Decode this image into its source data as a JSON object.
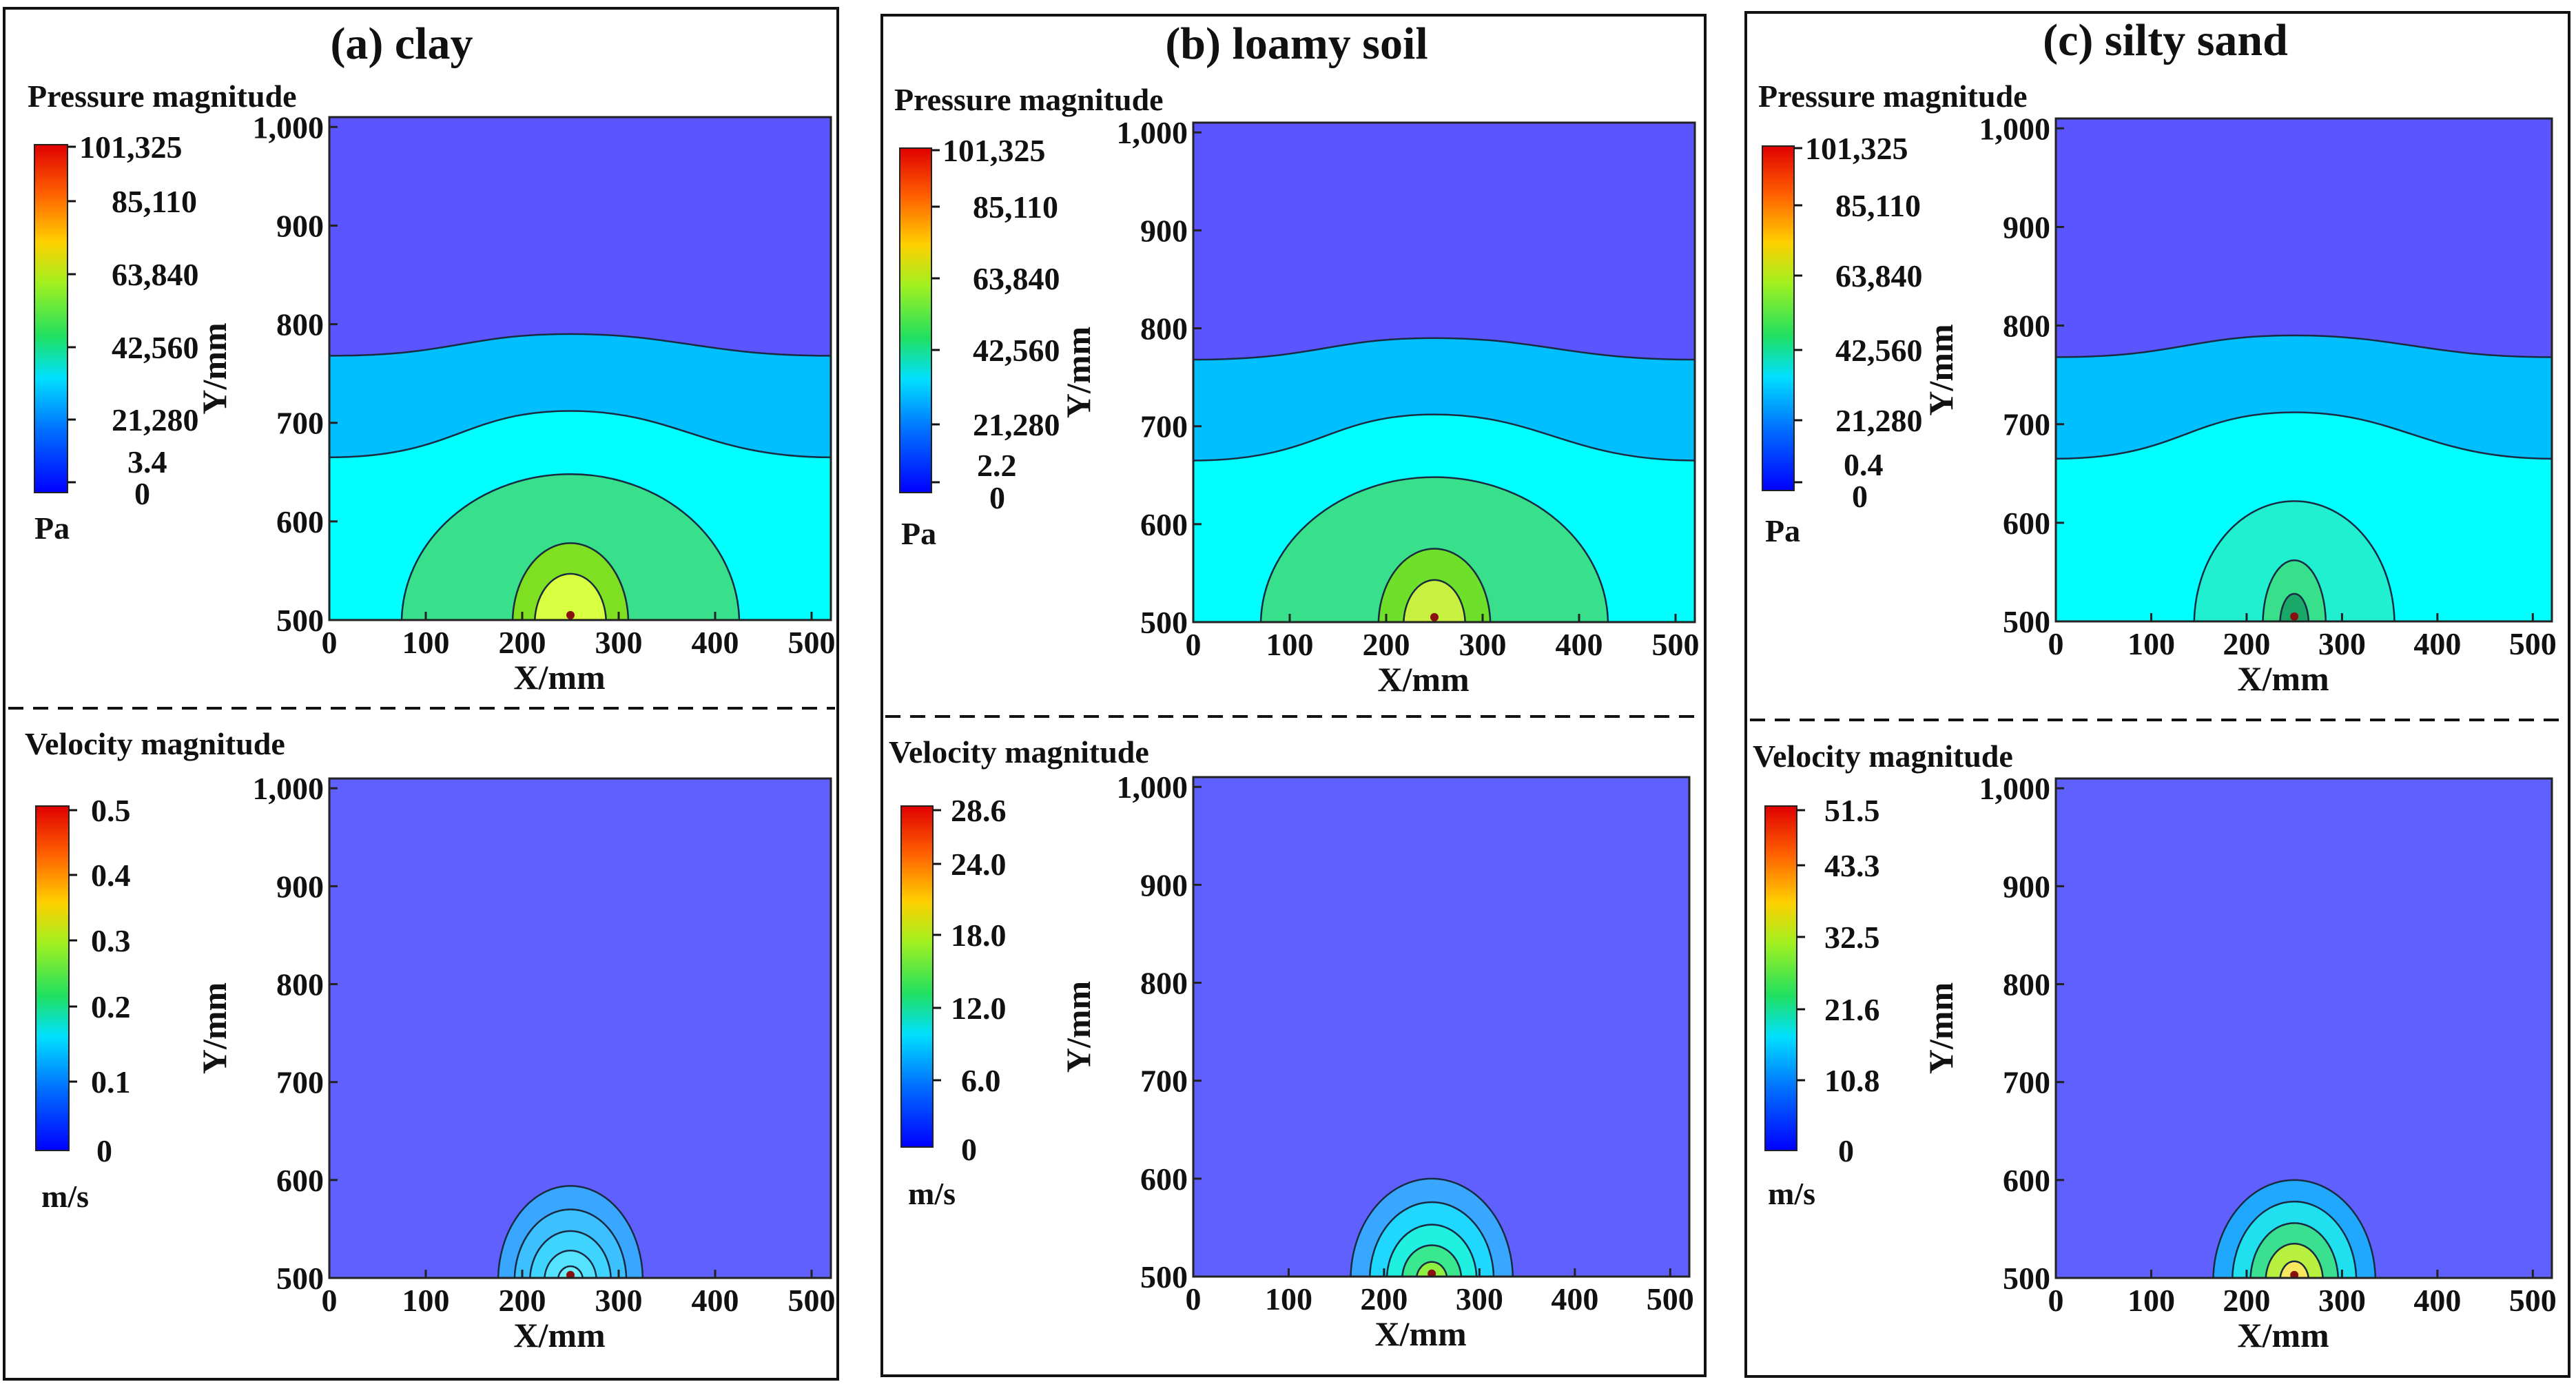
{
  "figure": {
    "panels": [
      {
        "title": "(a) clay",
        "pressure": {
          "heading": "Pressure magnitude",
          "unit": "Pa",
          "colorbar_ticks": [
            "101,325",
            "85,110",
            "63,840",
            "42,560",
            "21,280",
            "3.4",
            "0"
          ],
          "colorbar_tick_values": [
            101325,
            85110,
            63840,
            42560,
            21280,
            3.4,
            0
          ]
        },
        "velocity": {
          "heading": "Velocity magnitude",
          "unit": "m/s",
          "colorbar_ticks": [
            "0.5",
            "0.4",
            "0.3",
            "0.2",
            "0.1",
            "0"
          ],
          "colorbar_tick_values": [
            0.5,
            0.4,
            0.3,
            0.2,
            0.1,
            0
          ]
        }
      },
      {
        "title": "(b) loamy soil",
        "pressure": {
          "heading": "Pressure magnitude",
          "unit": "Pa",
          "colorbar_ticks": [
            "101,325",
            "85,110",
            "63,840",
            "42,560",
            "21,280",
            "2.2",
            "0"
          ],
          "colorbar_tick_values": [
            101325,
            85110,
            63840,
            42560,
            21280,
            2.2,
            0
          ]
        },
        "velocity": {
          "heading": "Velocity magnitude",
          "unit": "m/s",
          "colorbar_ticks": [
            "28.6",
            "24.0",
            "18.0",
            "12.0",
            "6.0",
            "0"
          ],
          "colorbar_tick_values": [
            28.6,
            24.0,
            18.0,
            12.0,
            6.0,
            0
          ]
        }
      },
      {
        "title": "(c) silty sand",
        "pressure": {
          "heading": "Pressure magnitude",
          "unit": "Pa",
          "colorbar_ticks": [
            "101,325",
            "85,110",
            "63,840",
            "42,560",
            "21,280",
            "0.4",
            "0"
          ],
          "colorbar_tick_values": [
            101325,
            85110,
            63840,
            42560,
            21280,
            0.4,
            0
          ]
        },
        "velocity": {
          "heading": "Velocity magnitude",
          "unit": "m/s",
          "colorbar_ticks": [
            "51.5",
            "43.3",
            "32.5",
            "21.6",
            "10.8",
            "0"
          ],
          "colorbar_tick_values": [
            51.5,
            43.3,
            32.5,
            21.6,
            10.8,
            0
          ]
        }
      }
    ]
  },
  "chart_data": [
    {
      "type": "heatmap",
      "title": "(a) clay — Pressure magnitude",
      "xlabel": "X/mm",
      "ylabel": "Y/mm",
      "xlim": [
        0,
        520
      ],
      "ylim": [
        500,
        1010
      ],
      "x_ticks": [
        0,
        100,
        200,
        300,
        400,
        500
      ],
      "y_ticks": [
        500,
        600,
        700,
        800,
        900,
        1000
      ],
      "y_tick_labels": [
        "500",
        "600",
        "700",
        "800",
        "900",
        "1,000"
      ],
      "colorbar_range": [
        0,
        101325
      ],
      "unit": "Pa",
      "source_x": 250,
      "source_y": 505,
      "colors": [
        "#5a55ff",
        "#00bfff",
        "#00ffff",
        "#38e08c",
        "#7ee020",
        "#d8ff40"
      ],
      "regions": [
        {
          "kind": "band",
          "edge_y": 665,
          "edge_crest": 712
        },
        {
          "kind": "band",
          "edge_y": 768,
          "edge_crest": 790
        },
        {
          "kind": "dome",
          "cx": 250,
          "rx": 175,
          "top": 648
        },
        {
          "kind": "dome",
          "cx": 250,
          "rx": 60,
          "top": 578
        },
        {
          "kind": "dome",
          "cx": 250,
          "rx": 37,
          "top": 547
        }
      ]
    },
    {
      "type": "heatmap",
      "title": "(a) clay — Velocity magnitude",
      "xlabel": "X/mm",
      "ylabel": "Y/mm",
      "xlim": [
        0,
        520
      ],
      "ylim": [
        500,
        1010
      ],
      "x_ticks": [
        0,
        100,
        200,
        300,
        400,
        500
      ],
      "y_ticks": [
        500,
        600,
        700,
        800,
        900,
        1000
      ],
      "y_tick_labels": [
        "500",
        "600",
        "700",
        "800",
        "900",
        "1,000"
      ],
      "colorbar_range": [
        0,
        0.5
      ],
      "unit": "m/s",
      "source_x": 250,
      "source_y": 503,
      "colors": [
        "#6060ff",
        "#39a7ff",
        "#3cc0ff",
        "#3ed4ff",
        "#55e2ff",
        "#6ff0ff"
      ],
      "regions": [
        {
          "kind": "dome",
          "cx": 250,
          "rx": 75,
          "top": 594
        },
        {
          "kind": "dome",
          "cx": 250,
          "rx": 58,
          "top": 570
        },
        {
          "kind": "dome",
          "cx": 250,
          "rx": 42,
          "top": 548
        },
        {
          "kind": "dome",
          "cx": 250,
          "rx": 27,
          "top": 528
        },
        {
          "kind": "dome",
          "cx": 250,
          "rx": 13,
          "top": 512
        }
      ]
    },
    {
      "type": "heatmap",
      "title": "(b) loamy soil — Pressure magnitude",
      "xlabel": "X/mm",
      "ylabel": "Y/mm",
      "xlim": [
        0,
        520
      ],
      "ylim": [
        500,
        1010
      ],
      "x_ticks": [
        0,
        100,
        200,
        300,
        400,
        500
      ],
      "y_ticks": [
        500,
        600,
        700,
        800,
        900,
        1000
      ],
      "y_tick_labels": [
        "500",
        "600",
        "700",
        "800",
        "900",
        "1,000"
      ],
      "colorbar_range": [
        0,
        101325
      ],
      "unit": "Pa",
      "source_x": 250,
      "source_y": 505,
      "colors": [
        "#5a55ff",
        "#00bfff",
        "#00ffff",
        "#38e08c",
        "#6ee02a",
        "#c8f040"
      ],
      "regions": [
        {
          "kind": "band",
          "edge_y": 665,
          "edge_crest": 712
        },
        {
          "kind": "band",
          "edge_y": 768,
          "edge_crest": 790
        },
        {
          "kind": "dome",
          "cx": 250,
          "rx": 180,
          "top": 648
        },
        {
          "kind": "dome",
          "cx": 250,
          "rx": 58,
          "top": 575
        },
        {
          "kind": "dome",
          "cx": 250,
          "rx": 32,
          "top": 543
        }
      ]
    },
    {
      "type": "heatmap",
      "title": "(b) loamy soil — Velocity magnitude",
      "xlabel": "X/mm",
      "ylabel": "Y/mm",
      "xlim": [
        0,
        520
      ],
      "ylim": [
        500,
        1010
      ],
      "x_ticks": [
        0,
        100,
        200,
        300,
        400,
        500
      ],
      "y_ticks": [
        500,
        600,
        700,
        800,
        900,
        1000
      ],
      "y_tick_labels": [
        "500",
        "600",
        "700",
        "800",
        "900",
        "1,000"
      ],
      "colorbar_range": [
        0,
        28.6
      ],
      "unit": "m/s",
      "source_x": 250,
      "source_y": 503,
      "colors": [
        "#6060ff",
        "#39a7ff",
        "#20d8ff",
        "#20f0e0",
        "#3ae890",
        "#8ef040"
      ],
      "regions": [
        {
          "kind": "dome",
          "cx": 250,
          "rx": 85,
          "top": 600
        },
        {
          "kind": "dome",
          "cx": 250,
          "rx": 65,
          "top": 576
        },
        {
          "kind": "dome",
          "cx": 250,
          "rx": 47,
          "top": 553
        },
        {
          "kind": "dome",
          "cx": 250,
          "rx": 31,
          "top": 532
        },
        {
          "kind": "dome",
          "cx": 250,
          "rx": 16,
          "top": 515
        }
      ]
    },
    {
      "type": "heatmap",
      "title": "(c) silty sand — Pressure magnitude",
      "xlabel": "X/mm",
      "ylabel": "Y/mm",
      "xlim": [
        0,
        520
      ],
      "ylim": [
        500,
        1010
      ],
      "x_ticks": [
        0,
        100,
        200,
        300,
        400,
        500
      ],
      "y_ticks": [
        500,
        600,
        700,
        800,
        900,
        1000
      ],
      "y_tick_labels": [
        "500",
        "600",
        "700",
        "800",
        "900",
        "1,000"
      ],
      "colorbar_range": [
        0,
        101325
      ],
      "unit": "Pa",
      "source_x": 250,
      "source_y": 505,
      "colors": [
        "#5a55ff",
        "#00bfff",
        "#00ffff",
        "#20f0d0",
        "#38e08c",
        "#1aa868"
      ],
      "regions": [
        {
          "kind": "band",
          "edge_y": 665,
          "edge_crest": 712
        },
        {
          "kind": "band",
          "edge_y": 768,
          "edge_crest": 790
        },
        {
          "kind": "dome",
          "cx": 250,
          "rx": 105,
          "top": 622
        },
        {
          "kind": "dome",
          "cx": 250,
          "rx": 33,
          "top": 562
        },
        {
          "kind": "dome",
          "cx": 250,
          "rx": 15,
          "top": 528
        }
      ]
    },
    {
      "type": "heatmap",
      "title": "(c) silty sand — Velocity magnitude",
      "xlabel": "X/mm",
      "ylabel": "Y/mm",
      "xlim": [
        0,
        520
      ],
      "ylim": [
        500,
        1010
      ],
      "x_ticks": [
        0,
        100,
        200,
        300,
        400,
        500
      ],
      "y_ticks": [
        500,
        600,
        700,
        800,
        900,
        1000
      ],
      "y_tick_labels": [
        "500",
        "600",
        "700",
        "800",
        "900",
        "1,000"
      ],
      "colorbar_range": [
        0,
        51.5
      ],
      "unit": "m/s",
      "source_x": 250,
      "source_y": 503,
      "colors": [
        "#6060ff",
        "#20a8ff",
        "#20e0f0",
        "#3ae090",
        "#b8f040",
        "#f8e860"
      ],
      "regions": [
        {
          "kind": "dome",
          "cx": 250,
          "rx": 85,
          "top": 600
        },
        {
          "kind": "dome",
          "cx": 250,
          "rx": 65,
          "top": 578
        },
        {
          "kind": "dome",
          "cx": 250,
          "rx": 46,
          "top": 556
        },
        {
          "kind": "dome",
          "cx": 250,
          "rx": 30,
          "top": 535
        },
        {
          "kind": "dome",
          "cx": 250,
          "rx": 15,
          "top": 517
        }
      ]
    }
  ]
}
